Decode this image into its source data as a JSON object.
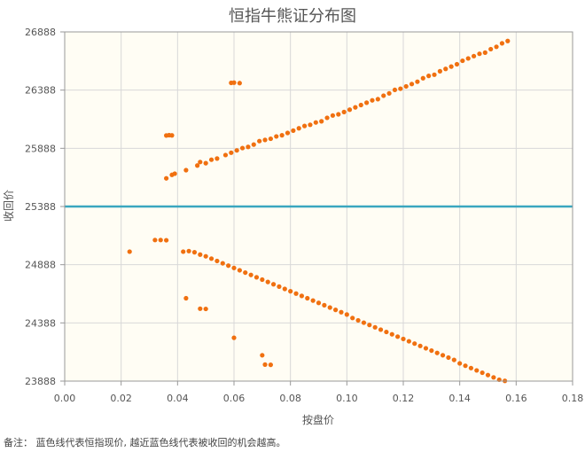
{
  "chart_data": {
    "type": "scatter",
    "title": "恒指牛熊证分布图",
    "xlabel": "按盘价",
    "ylabel": "收回价",
    "xlim": [
      0,
      0.18
    ],
    "ylim": [
      23888,
      26888
    ],
    "x_ticks": [
      "0.00",
      "0.02",
      "0.04",
      "0.06",
      "0.08",
      "0.10",
      "0.12",
      "0.14",
      "0.16",
      "0.18"
    ],
    "y_ticks": [
      "23888",
      "24388",
      "24888",
      "25388",
      "25888",
      "26388",
      "26888"
    ],
    "grid": true,
    "background_color": "#fffdf4",
    "point_color": "#f07010",
    "reference_line": {
      "y": 25388,
      "color": "#3aa7bf"
    },
    "series": [
      {
        "points": [
          [
            0.036,
            25630
          ],
          [
            0.038,
            25660
          ],
          [
            0.039,
            25670
          ],
          [
            0.043,
            25700
          ],
          [
            0.047,
            25740
          ],
          [
            0.048,
            25770
          ],
          [
            0.05,
            25760
          ],
          [
            0.052,
            25790
          ],
          [
            0.054,
            25800
          ],
          [
            0.057,
            25830
          ],
          [
            0.059,
            25850
          ],
          [
            0.061,
            25870
          ],
          [
            0.063,
            25890
          ],
          [
            0.065,
            25900
          ],
          [
            0.067,
            25920
          ],
          [
            0.069,
            25950
          ],
          [
            0.071,
            25960
          ],
          [
            0.073,
            25970
          ],
          [
            0.075,
            25990
          ],
          [
            0.077,
            26000
          ],
          [
            0.079,
            26020
          ],
          [
            0.081,
            26040
          ],
          [
            0.083,
            26060
          ],
          [
            0.085,
            26080
          ],
          [
            0.087,
            26090
          ],
          [
            0.089,
            26110
          ],
          [
            0.091,
            26120
          ],
          [
            0.093,
            26150
          ],
          [
            0.095,
            26170
          ],
          [
            0.097,
            26180
          ],
          [
            0.099,
            26200
          ],
          [
            0.101,
            26220
          ],
          [
            0.103,
            26240
          ],
          [
            0.105,
            26260
          ],
          [
            0.107,
            26280
          ],
          [
            0.109,
            26300
          ],
          [
            0.111,
            26310
          ],
          [
            0.113,
            26340
          ],
          [
            0.115,
            26360
          ],
          [
            0.117,
            26390
          ],
          [
            0.119,
            26400
          ],
          [
            0.121,
            26420
          ],
          [
            0.123,
            26440
          ],
          [
            0.125,
            26460
          ],
          [
            0.127,
            26490
          ],
          [
            0.129,
            26510
          ],
          [
            0.131,
            26520
          ],
          [
            0.133,
            26550
          ],
          [
            0.135,
            26570
          ],
          [
            0.137,
            26590
          ],
          [
            0.139,
            26610
          ],
          [
            0.141,
            26640
          ],
          [
            0.143,
            26660
          ],
          [
            0.145,
            26680
          ],
          [
            0.147,
            26700
          ],
          [
            0.149,
            26710
          ],
          [
            0.151,
            26740
          ],
          [
            0.153,
            26760
          ],
          [
            0.155,
            26790
          ],
          [
            0.157,
            26810
          ],
          [
            0.036,
            25998
          ],
          [
            0.037,
            26001
          ],
          [
            0.038,
            25999
          ],
          [
            0.059,
            26450
          ],
          [
            0.06,
            26452
          ],
          [
            0.062,
            26448
          ],
          [
            0.023,
            25000
          ],
          [
            0.032,
            25100
          ],
          [
            0.034,
            25100
          ],
          [
            0.036,
            25098
          ],
          [
            0.042,
            25000
          ],
          [
            0.044,
            25005
          ],
          [
            0.046,
            24995
          ],
          [
            0.048,
            24975
          ],
          [
            0.05,
            24960
          ],
          [
            0.052,
            24940
          ],
          [
            0.054,
            24920
          ],
          [
            0.056,
            24900
          ],
          [
            0.058,
            24880
          ],
          [
            0.06,
            24860
          ],
          [
            0.062,
            24840
          ],
          [
            0.064,
            24820
          ],
          [
            0.066,
            24800
          ],
          [
            0.068,
            24780
          ],
          [
            0.07,
            24760
          ],
          [
            0.072,
            24740
          ],
          [
            0.074,
            24720
          ],
          [
            0.076,
            24700
          ],
          [
            0.078,
            24680
          ],
          [
            0.08,
            24660
          ],
          [
            0.082,
            24640
          ],
          [
            0.084,
            24620
          ],
          [
            0.086,
            24600
          ],
          [
            0.088,
            24580
          ],
          [
            0.09,
            24560
          ],
          [
            0.092,
            24540
          ],
          [
            0.094,
            24520
          ],
          [
            0.096,
            24500
          ],
          [
            0.098,
            24480
          ],
          [
            0.1,
            24460
          ],
          [
            0.102,
            24430
          ],
          [
            0.104,
            24410
          ],
          [
            0.106,
            24390
          ],
          [
            0.108,
            24370
          ],
          [
            0.11,
            24350
          ],
          [
            0.112,
            24330
          ],
          [
            0.114,
            24310
          ],
          [
            0.116,
            24290
          ],
          [
            0.118,
            24270
          ],
          [
            0.12,
            24250
          ],
          [
            0.122,
            24230
          ],
          [
            0.124,
            24210
          ],
          [
            0.126,
            24190
          ],
          [
            0.128,
            24170
          ],
          [
            0.13,
            24150
          ],
          [
            0.132,
            24130
          ],
          [
            0.134,
            24110
          ],
          [
            0.136,
            24090
          ],
          [
            0.138,
            24070
          ],
          [
            0.14,
            24040
          ],
          [
            0.142,
            24020
          ],
          [
            0.144,
            24000
          ],
          [
            0.146,
            23980
          ],
          [
            0.148,
            23960
          ],
          [
            0.15,
            23940
          ],
          [
            0.152,
            23920
          ],
          [
            0.154,
            23900
          ],
          [
            0.156,
            23890
          ],
          [
            0.043,
            24600
          ],
          [
            0.048,
            24510
          ],
          [
            0.05,
            24508
          ],
          [
            0.06,
            24260
          ],
          [
            0.07,
            24110
          ],
          [
            0.071,
            24030
          ],
          [
            0.073,
            24028
          ]
        ]
      }
    ]
  },
  "footnote": "备注：  蓝色线代表恒指现价, 越近蓝色线代表被收回的机会越高。"
}
